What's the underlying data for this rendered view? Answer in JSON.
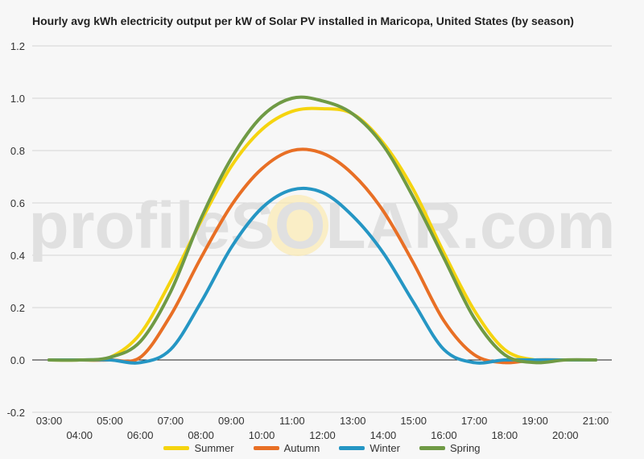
{
  "watermark": "profileSOLAR.com",
  "chart_data": {
    "type": "line",
    "title": "Hourly avg kWh electricity output per kW of Solar PV installed in Maricopa, United States (by season)",
    "xlabel": "",
    "ylabel": "",
    "ylim": [
      -0.2,
      1.2
    ],
    "yticks": [
      "1.2",
      "1.0",
      "0.8",
      "0.6",
      "0.4",
      "0.2",
      "0.0",
      "-0.2"
    ],
    "x": [
      "03:00",
      "04:00",
      "05:00",
      "06:00",
      "07:00",
      "08:00",
      "09:00",
      "10:00",
      "11:00",
      "12:00",
      "13:00",
      "14:00",
      "15:00",
      "16:00",
      "17:00",
      "18:00",
      "19:00",
      "20:00",
      "21:00"
    ],
    "grid": true,
    "legend_position": "bottom",
    "series": [
      {
        "name": "Summer",
        "color": "#f5d40f",
        "values": [
          0,
          0,
          0.01,
          0.1,
          0.3,
          0.53,
          0.74,
          0.88,
          0.95,
          0.96,
          0.94,
          0.83,
          0.65,
          0.41,
          0.19,
          0.04,
          0.0,
          0,
          0
        ]
      },
      {
        "name": "Autumn",
        "color": "#e86f25",
        "values": [
          0,
          0,
          0,
          0.01,
          0.17,
          0.39,
          0.59,
          0.73,
          0.8,
          0.79,
          0.71,
          0.57,
          0.37,
          0.15,
          0.02,
          -0.01,
          0,
          0,
          0
        ]
      },
      {
        "name": "Winter",
        "color": "#2596c4",
        "values": [
          0,
          0,
          0,
          -0.01,
          0.04,
          0.22,
          0.43,
          0.58,
          0.65,
          0.64,
          0.55,
          0.41,
          0.22,
          0.04,
          -0.01,
          0,
          0,
          0,
          0
        ]
      },
      {
        "name": "Spring",
        "color": "#6f9a45",
        "values": [
          0,
          0,
          0.01,
          0.07,
          0.26,
          0.54,
          0.77,
          0.93,
          1.0,
          0.99,
          0.94,
          0.82,
          0.62,
          0.39,
          0.16,
          0.02,
          -0.01,
          0,
          0
        ]
      }
    ]
  }
}
